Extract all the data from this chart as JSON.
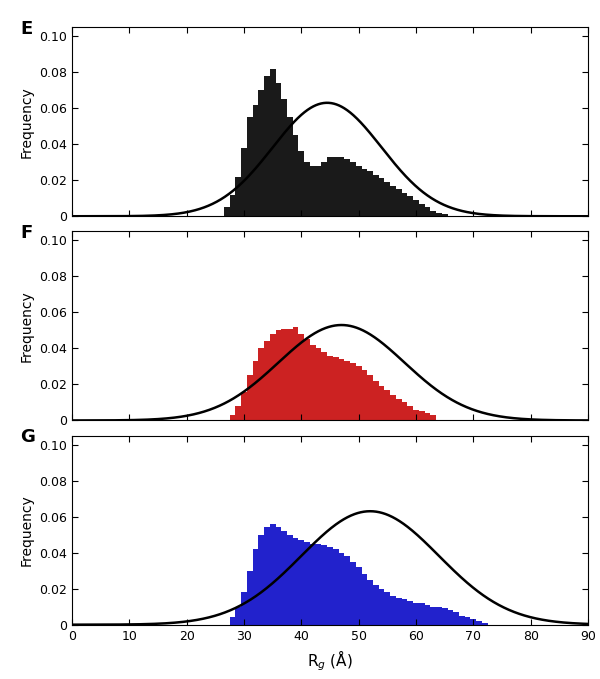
{
  "panel_labels": [
    "E",
    "F",
    "G"
  ],
  "xlabel": "R$_g$ (Å)",
  "ylabel": "Frequency",
  "xlim": [
    0,
    90
  ],
  "ylim": [
    0,
    0.105
  ],
  "ylim_display": [
    0,
    0.1
  ],
  "xticks": [
    0,
    10,
    20,
    30,
    40,
    50,
    60,
    70,
    80,
    90
  ],
  "yticks": [
    0,
    0.02,
    0.04,
    0.06,
    0.08,
    0.1
  ],
  "bar_width": 1.0,
  "bar_colors": [
    "#1a1a1a",
    "#cc2222",
    "#2222cc"
  ],
  "panel_E_bars": {
    "bin_centers": [
      27,
      28,
      29,
      30,
      31,
      32,
      33,
      34,
      35,
      36,
      37,
      38,
      39,
      40,
      41,
      42,
      43,
      44,
      45,
      46,
      47,
      48,
      49,
      50,
      51,
      52,
      53,
      54,
      55,
      56,
      57,
      58,
      59,
      60,
      61,
      62,
      63,
      64,
      65
    ],
    "heights": [
      0.005,
      0.012,
      0.022,
      0.038,
      0.055,
      0.062,
      0.07,
      0.078,
      0.082,
      0.074,
      0.065,
      0.055,
      0.045,
      0.036,
      0.03,
      0.028,
      0.028,
      0.03,
      0.033,
      0.033,
      0.033,
      0.032,
      0.03,
      0.028,
      0.026,
      0.025,
      0.023,
      0.021,
      0.019,
      0.017,
      0.015,
      0.013,
      0.011,
      0.009,
      0.007,
      0.005,
      0.003,
      0.002,
      0.001
    ]
  },
  "panel_E_curve": {
    "mu": 44.5,
    "sigma": 9.5,
    "peak": 0.063
  },
  "panel_F_bars": {
    "bin_centers": [
      28,
      29,
      30,
      31,
      32,
      33,
      34,
      35,
      36,
      37,
      38,
      39,
      40,
      41,
      42,
      43,
      44,
      45,
      46,
      47,
      48,
      49,
      50,
      51,
      52,
      53,
      54,
      55,
      56,
      57,
      58,
      59,
      60,
      61,
      62,
      63
    ],
    "heights": [
      0.003,
      0.008,
      0.016,
      0.025,
      0.033,
      0.04,
      0.044,
      0.048,
      0.05,
      0.051,
      0.051,
      0.052,
      0.048,
      0.045,
      0.042,
      0.04,
      0.038,
      0.036,
      0.035,
      0.034,
      0.033,
      0.032,
      0.03,
      0.028,
      0.025,
      0.022,
      0.019,
      0.017,
      0.014,
      0.012,
      0.01,
      0.008,
      0.006,
      0.005,
      0.004,
      0.003
    ]
  },
  "panel_F_curve": {
    "mu": 47.0,
    "sigma": 11.0,
    "peak": 0.053
  },
  "panel_G_bars": {
    "bin_centers": [
      28,
      29,
      30,
      31,
      32,
      33,
      34,
      35,
      36,
      37,
      38,
      39,
      40,
      41,
      42,
      43,
      44,
      45,
      46,
      47,
      48,
      49,
      50,
      51,
      52,
      53,
      54,
      55,
      56,
      57,
      58,
      59,
      60,
      61,
      62,
      63,
      64,
      65,
      66,
      67,
      68,
      69,
      70,
      71,
      72
    ],
    "heights": [
      0.004,
      0.01,
      0.018,
      0.03,
      0.042,
      0.05,
      0.054,
      0.056,
      0.054,
      0.052,
      0.05,
      0.048,
      0.047,
      0.046,
      0.045,
      0.045,
      0.044,
      0.043,
      0.042,
      0.04,
      0.038,
      0.035,
      0.032,
      0.028,
      0.025,
      0.022,
      0.02,
      0.018,
      0.016,
      0.015,
      0.014,
      0.013,
      0.012,
      0.012,
      0.011,
      0.01,
      0.01,
      0.009,
      0.008,
      0.007,
      0.005,
      0.004,
      0.003,
      0.002,
      0.001
    ]
  },
  "panel_G_curve": {
    "mu": 52.0,
    "sigma": 12.0,
    "peak": 0.063
  }
}
